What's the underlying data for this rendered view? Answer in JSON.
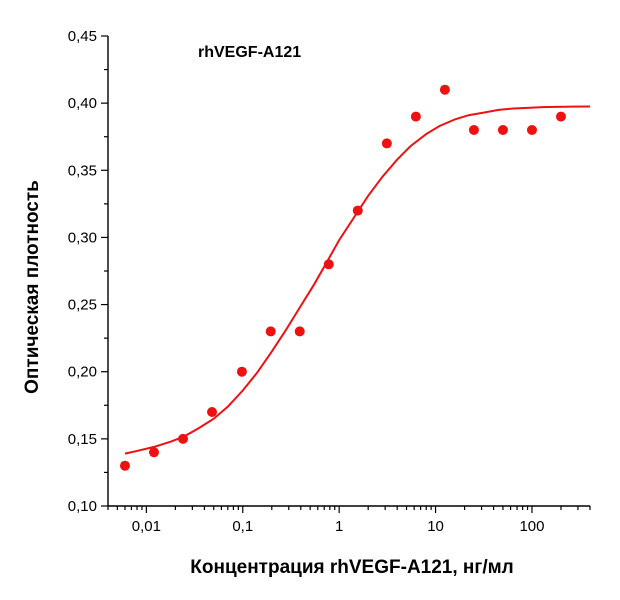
{
  "chart_data": {
    "type": "scatter",
    "annotation": "rhVEGF-A121",
    "xlabel": "Концентрация rhVEGF-A121, нг/мл",
    "ylabel": "Оптическая плотность",
    "x_scale": "log",
    "xlim": [
      0.004,
      400
    ],
    "ylim": [
      0.1,
      0.45
    ],
    "x_ticks": [
      0.01,
      0.1,
      1,
      10,
      100
    ],
    "x_tick_labels": [
      "0,01",
      "0,1",
      "1",
      "10",
      "100"
    ],
    "y_ticks": [
      0.1,
      0.15,
      0.2,
      0.25,
      0.3,
      0.35,
      0.4,
      0.45
    ],
    "y_tick_labels": [
      "0,10",
      "0,15",
      "0,20",
      "0,25",
      "0,30",
      "0,35",
      "0,40",
      "0,45"
    ],
    "grid": false,
    "colors": {
      "points": "#ee1111",
      "curve": "#ee1111"
    },
    "series": [
      {
        "type": "scatter",
        "x": [
          0.006,
          0.012,
          0.024,
          0.048,
          0.098,
          0.195,
          0.39,
          0.78,
          1.56,
          3.125,
          6.25,
          12.5,
          25,
          50,
          100,
          200
        ],
        "y": [
          0.13,
          0.14,
          0.15,
          0.17,
          0.2,
          0.23,
          0.23,
          0.28,
          0.32,
          0.37,
          0.39,
          0.41,
          0.38,
          0.38,
          0.38,
          0.39
        ]
      },
      {
        "type": "line",
        "x": [
          0.006,
          0.008,
          0.012,
          0.018,
          0.025,
          0.035,
          0.05,
          0.07,
          0.1,
          0.14,
          0.2,
          0.28,
          0.4,
          0.55,
          0.75,
          1.0,
          1.4,
          2.0,
          2.8,
          4.0,
          5.5,
          8.0,
          11,
          16,
          22,
          32,
          45,
          64,
          90,
          130,
          180,
          260,
          400
        ],
        "y": [
          0.139,
          0.141,
          0.144,
          0.148,
          0.152,
          0.158,
          0.165,
          0.174,
          0.186,
          0.199,
          0.215,
          0.231,
          0.249,
          0.265,
          0.282,
          0.298,
          0.314,
          0.331,
          0.345,
          0.358,
          0.368,
          0.377,
          0.383,
          0.388,
          0.391,
          0.393,
          0.395,
          0.396,
          0.3965,
          0.397,
          0.3972,
          0.3974,
          0.3975
        ]
      }
    ]
  }
}
